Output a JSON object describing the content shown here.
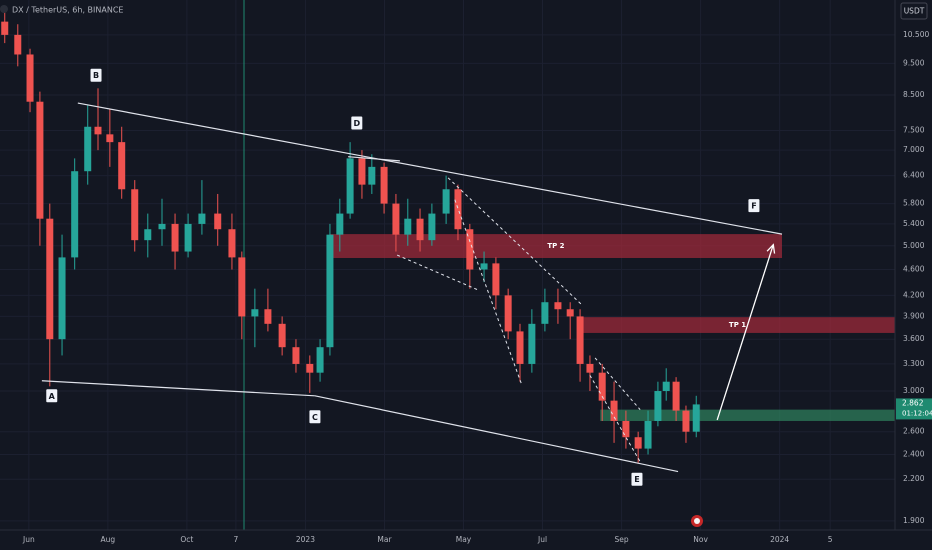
{
  "chart_data": {
    "type": "candlestick",
    "title": "DX / TetherUS, 6h, BINANCE",
    "currency": "USDT",
    "log_scale": true,
    "grid": true,
    "up_color": "#26a69a",
    "down_color": "#ef5350",
    "xlim": [
      -0.73,
      21.92
    ],
    "ylim": [
      1.84,
      11.87
    ],
    "xticks": [
      {
        "value": 0,
        "label": "Jun"
      },
      {
        "value": 2,
        "label": "Aug"
      },
      {
        "value": 4,
        "label": "Oct"
      },
      {
        "value": 5.24,
        "label": "7"
      },
      {
        "value": 7,
        "label": "2023"
      },
      {
        "value": 9,
        "label": "Mar"
      },
      {
        "value": 11,
        "label": "May"
      },
      {
        "value": 13,
        "label": "Jul"
      },
      {
        "value": 15,
        "label": "Sep"
      },
      {
        "value": 17,
        "label": "Nov"
      },
      {
        "value": 19,
        "label": "2024"
      },
      {
        "value": 20.28,
        "label": "5"
      }
    ],
    "yticks": [
      {
        "value": 10.5,
        "label": "10.500"
      },
      {
        "value": 9.5,
        "label": "9.500"
      },
      {
        "value": 8.5,
        "label": "8.500"
      },
      {
        "value": 7.5,
        "label": "7.500"
      },
      {
        "value": 7,
        "label": "7.000"
      },
      {
        "value": 6.4,
        "label": "6.400"
      },
      {
        "value": 5.8,
        "label": "5.800"
      },
      {
        "value": 5.4,
        "label": "5.400"
      },
      {
        "value": 5,
        "label": "5.000"
      },
      {
        "value": 4.6,
        "label": "4.600"
      },
      {
        "value": 4.2,
        "label": "4.200"
      },
      {
        "value": 3.9,
        "label": "3.900"
      },
      {
        "value": 3.6,
        "label": "3.600"
      },
      {
        "value": 3.3,
        "label": "3.300"
      },
      {
        "value": 3,
        "label": "3.000"
      },
      {
        "value": 2.6,
        "label": "2.600"
      },
      {
        "value": 2.4,
        "label": "2.400"
      },
      {
        "value": 2.2,
        "label": "2.200"
      },
      {
        "value": 1.9,
        "label": "1.900"
      }
    ],
    "x": [
      -0.61,
      -0.28,
      0.03,
      0.28,
      0.53,
      0.84,
      1.16,
      1.49,
      1.75,
      2.05,
      2.35,
      2.68,
      3.01,
      3.37,
      3.7,
      4.03,
      4.38,
      4.78,
      5.14,
      5.39,
      5.72,
      6.05,
      6.41,
      6.76,
      7.11,
      7.37,
      7.62,
      7.87,
      8.13,
      8.43,
      8.68,
      8.99,
      9.29,
      9.59,
      9.9,
      10.2,
      10.56,
      10.86,
      11.16,
      11.52,
      11.82,
      12.13,
      12.43,
      12.73,
      13.06,
      13.39,
      13.7,
      13.95,
      14.2,
      14.51,
      14.81,
      15.11,
      15.42,
      15.67,
      15.92,
      16.13,
      16.38,
      16.63,
      16.89
    ],
    "open": [
      11.0,
      10.5,
      9.8,
      8.3,
      5.5,
      3.6,
      4.8,
      6.5,
      7.6,
      7.4,
      7.2,
      6.1,
      5.1,
      5.3,
      5.4,
      4.9,
      5.4,
      5.6,
      5.3,
      4.8,
      3.9,
      4.0,
      3.8,
      3.5,
      3.3,
      3.2,
      3.5,
      5.2,
      5.6,
      6.8,
      6.2,
      6.6,
      5.8,
      5.2,
      5.5,
      5.1,
      5.6,
      6.1,
      5.3,
      4.6,
      4.7,
      4.2,
      3.7,
      3.3,
      3.8,
      4.1,
      4.0,
      3.9,
      3.3,
      3.2,
      2.9,
      2.7,
      2.55,
      2.45,
      2.7,
      3.0,
      3.1,
      2.8,
      2.6
    ],
    "high": [
      11.5,
      10.9,
      10.0,
      8.6,
      5.8,
      5.2,
      6.8,
      8.2,
      8.7,
      8.1,
      7.6,
      6.3,
      5.6,
      5.9,
      5.6,
      5.6,
      6.3,
      6.0,
      5.6,
      4.9,
      4.3,
      4.3,
      3.9,
      3.6,
      3.4,
      3.6,
      5.4,
      5.9,
      7.2,
      7.0,
      6.9,
      6.7,
      6.0,
      5.9,
      5.7,
      5.8,
      6.4,
      6.2,
      5.4,
      4.9,
      4.8,
      4.3,
      3.8,
      4.0,
      4.3,
      4.3,
      4.1,
      4.0,
      3.4,
      3.3,
      3.1,
      2.8,
      2.6,
      2.8,
      3.1,
      3.25,
      3.15,
      2.85,
      2.95
    ],
    "low": [
      10.2,
      9.4,
      8.0,
      5.0,
      3.05,
      3.4,
      4.6,
      6.2,
      7.0,
      6.6,
      5.9,
      4.9,
      4.8,
      5.0,
      4.6,
      4.8,
      5.2,
      5.0,
      4.6,
      3.6,
      3.5,
      3.7,
      3.4,
      3.2,
      2.98,
      3.1,
      3.4,
      4.9,
      5.5,
      5.9,
      6.0,
      5.6,
      4.9,
      5.0,
      4.9,
      5.0,
      5.4,
      5.1,
      4.3,
      4.4,
      4.0,
      3.6,
      3.1,
      3.2,
      3.7,
      3.8,
      3.6,
      3.1,
      3.0,
      2.7,
      2.5,
      2.45,
      2.33,
      2.4,
      2.65,
      2.9,
      2.7,
      2.5,
      2.55
    ],
    "close": [
      10.5,
      9.8,
      8.3,
      5.5,
      3.6,
      4.8,
      6.5,
      7.6,
      7.4,
      7.2,
      6.1,
      5.1,
      5.3,
      5.4,
      4.9,
      5.4,
      5.6,
      5.3,
      4.8,
      3.9,
      4.0,
      3.8,
      3.5,
      3.3,
      3.2,
      3.5,
      5.2,
      5.6,
      6.8,
      6.2,
      6.6,
      5.8,
      5.2,
      5.5,
      5.1,
      5.6,
      6.1,
      5.3,
      4.6,
      4.7,
      4.2,
      3.7,
      3.3,
      3.8,
      4.1,
      4.0,
      3.9,
      3.3,
      3.2,
      2.9,
      2.7,
      2.55,
      2.45,
      2.7,
      3.0,
      3.1,
      2.8,
      2.6,
      2.862
    ],
    "last_price": 2.862,
    "countdown": "01:12:04",
    "zones": [
      {
        "label": "TP 2",
        "x": [
          7.62,
          19.06
        ],
        "y": [
          4.79,
          5.21
        ],
        "color": "#9c2a3a"
      },
      {
        "label": "TP 1",
        "x": [
          13.95,
          21.92
        ],
        "y": [
          3.68,
          3.89
        ],
        "color": "#9c2a3a"
      },
      {
        "x": [
          14.46,
          21.92
        ],
        "y": [
          2.7,
          2.81
        ],
        "color": "#2e7d5b"
      }
    ],
    "lines": [
      {
        "x": [
          1.24,
          19.06
        ],
        "y": [
          8.26,
          5.21
        ],
        "dash": false
      },
      {
        "x": [
          0.33,
          7.24
        ],
        "y": [
          3.11,
          2.95
        ],
        "dash": false
      },
      {
        "x": [
          7.24,
          16.43
        ],
        "y": [
          2.95,
          2.26
        ],
        "dash": false
      },
      {
        "x": [
          8.08,
          9.39
        ],
        "y": [
          6.84,
          6.74
        ],
        "dash": false
      },
      {
        "x": [
          10.61,
          14.0
        ],
        "y": [
          6.35,
          4.06
        ],
        "dash": true
      },
      {
        "x": [
          9.32,
          11.37
        ],
        "y": [
          4.84,
          4.28
        ],
        "dash": true
      },
      {
        "x": [
          10.78,
          12.48
        ],
        "y": [
          5.88,
          3.06
        ],
        "dash": true
      },
      {
        "x": [
          14.33,
          15.47
        ],
        "y": [
          3.37,
          2.81
        ],
        "dash": true
      },
      {
        "x": [
          14.2,
          15.47
        ],
        "y": [
          3.17,
          2.34
        ],
        "dash": true
      }
    ],
    "arrow": {
      "x": [
        17.42,
        18.84
      ],
      "y": [
        2.71,
        5.02
      ]
    },
    "points": [
      {
        "label": "A",
        "x": 0.58,
        "y": 2.95
      },
      {
        "label": "B",
        "x": 1.7,
        "y": 9.11
      },
      {
        "label": "C",
        "x": 7.24,
        "y": 2.74
      },
      {
        "label": "D",
        "x": 8.3,
        "y": 7.7
      },
      {
        "label": "E",
        "x": 15.39,
        "y": 2.2
      },
      {
        "label": "F",
        "x": 18.35,
        "y": 5.76
      }
    ]
  }
}
